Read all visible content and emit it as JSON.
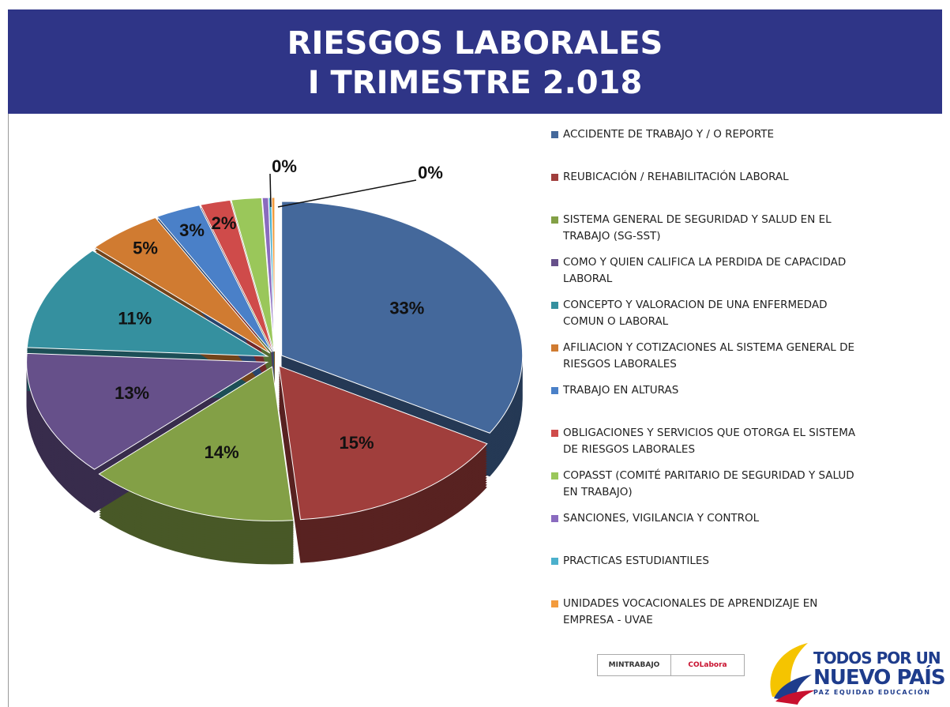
{
  "chart_data": {
    "type": "pie",
    "title": [
      "RIESGOS LABORALES",
      "I TRIMESTRE 2.018"
    ],
    "categories": [
      "ACCIDENTE DE TRABAJO Y / O REPORTE",
      "REUBICACIÓN / REHABILITACIÓN LABORAL",
      "SISTEMA GENERAL DE SEGURIDAD Y SALUD EN EL TRABAJO (SG-SST)",
      "COMO Y QUIEN CALIFICA LA PERDIDA DE CAPACIDAD LABORAL",
      "CONCEPTO Y VALORACION DE UNA ENFERMEDAD COMUN O LABORAL",
      "AFILIACION Y COTIZACIONES AL SISTEMA GENERAL DE RIESGOS LABORALES",
      "TRABAJO EN ALTURAS",
      "OBLIGACIONES Y SERVICIOS QUE OTORGA EL SISTEMA DE RIESGOS LABORALES",
      "COPASST (COMITÉ PARITARIO DE SEGURIDAD Y SALUD EN TRABAJO)",
      "SANCIONES, VIGILANCIA Y CONTROL",
      "PRACTICAS ESTUDIANTILES",
      "UNIDADES VOCACIONALES DE APRENDIZAJE EN EMPRESA - UVAE"
    ],
    "values": [
      33,
      15,
      14,
      13,
      11,
      5,
      3,
      2,
      2,
      0.4,
      0.2,
      0.2
    ],
    "value_labels": [
      "33%",
      "15%",
      "14%",
      "13%",
      "11%",
      "5%",
      "3%",
      "2%",
      null,
      "0%",
      "0%",
      null
    ],
    "colors": [
      "#44689b",
      "#a03e3c",
      "#83a046",
      "#66508a",
      "#35909f",
      "#d07b31",
      "#4a80c8",
      "#cf4b4a",
      "#9ac75a",
      "#8a6bbf",
      "#4bb0cc",
      "#f39b3d"
    ],
    "legend": "right"
  },
  "footer": {
    "logos": [
      "MINTRABAJO",
      "COLabora"
    ],
    "slogan": [
      "TODOS POR UN",
      "NUEVO PAÍS",
      "PAZ  EQUIDAD  EDUCACIÓN"
    ]
  }
}
